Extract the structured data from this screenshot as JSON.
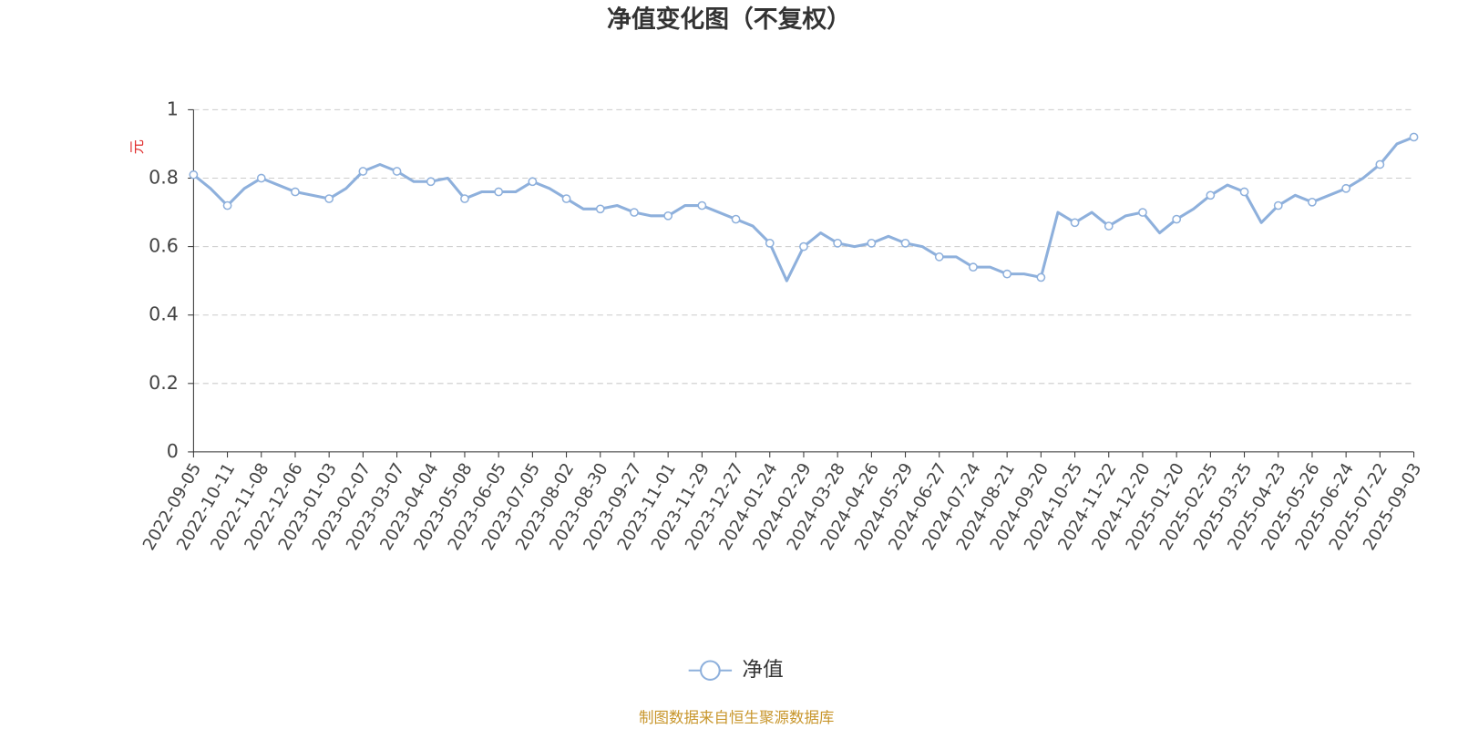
{
  "chart_data": {
    "type": "line",
    "title": "净值变化图（不复权）",
    "y_label": "元",
    "source": "制图数据来自恒生聚源数据库",
    "categories": [
      "2022-09-05",
      null,
      "2022-10-11",
      null,
      "2022-11-08",
      null,
      "2022-12-06",
      null,
      "2023-01-03",
      null,
      "2023-02-07",
      null,
      "2023-03-07",
      null,
      "2023-04-04",
      null,
      "2023-05-08",
      null,
      "2023-06-05",
      null,
      "2023-07-05",
      null,
      "2023-08-02",
      null,
      "2023-08-30",
      null,
      "2023-09-27",
      null,
      "2023-11-01",
      null,
      "2023-11-29",
      null,
      "2023-12-27",
      null,
      "2024-01-24",
      null,
      "2024-02-29",
      null,
      "2024-03-28",
      null,
      "2024-04-26",
      null,
      "2024-05-29",
      null,
      "2024-06-27",
      null,
      "2024-07-24",
      null,
      "2024-08-21",
      null,
      "2024-09-20",
      null,
      "2024-10-25",
      null,
      "2024-11-22",
      null,
      "2024-12-20",
      null,
      "2025-01-20",
      null,
      "2025-02-25",
      null,
      "2025-03-25",
      null,
      "2025-04-23",
      null,
      "2025-05-26",
      null,
      "2025-06-24",
      null,
      "2025-07-22",
      null,
      "2025-09-03"
    ],
    "series": [
      {
        "name": "净值",
        "color": "#8eb0dc",
        "values": [
          0.81,
          0.77,
          0.72,
          0.77,
          0.8,
          0.78,
          0.76,
          0.75,
          0.74,
          0.77,
          0.82,
          0.84,
          0.82,
          0.79,
          0.79,
          0.8,
          0.74,
          0.76,
          0.76,
          0.76,
          0.79,
          0.77,
          0.74,
          0.71,
          0.71,
          0.72,
          0.7,
          0.69,
          0.69,
          0.72,
          0.72,
          0.7,
          0.68,
          0.66,
          0.61,
          0.5,
          0.6,
          0.64,
          0.61,
          0.6,
          0.61,
          0.63,
          0.61,
          0.6,
          0.57,
          0.57,
          0.54,
          0.54,
          0.52,
          0.52,
          0.51,
          0.7,
          0.67,
          0.7,
          0.66,
          0.69,
          0.7,
          0.64,
          0.68,
          0.71,
          0.75,
          0.78,
          0.76,
          0.67,
          0.72,
          0.75,
          0.73,
          0.75,
          0.77,
          0.8,
          0.84,
          0.9,
          0.92
        ]
      }
    ],
    "ylim": [
      0,
      1
    ],
    "yticks": [
      0,
      0.2,
      0.4,
      0.6,
      0.8,
      1
    ],
    "grid": true,
    "legend": "bottom"
  }
}
